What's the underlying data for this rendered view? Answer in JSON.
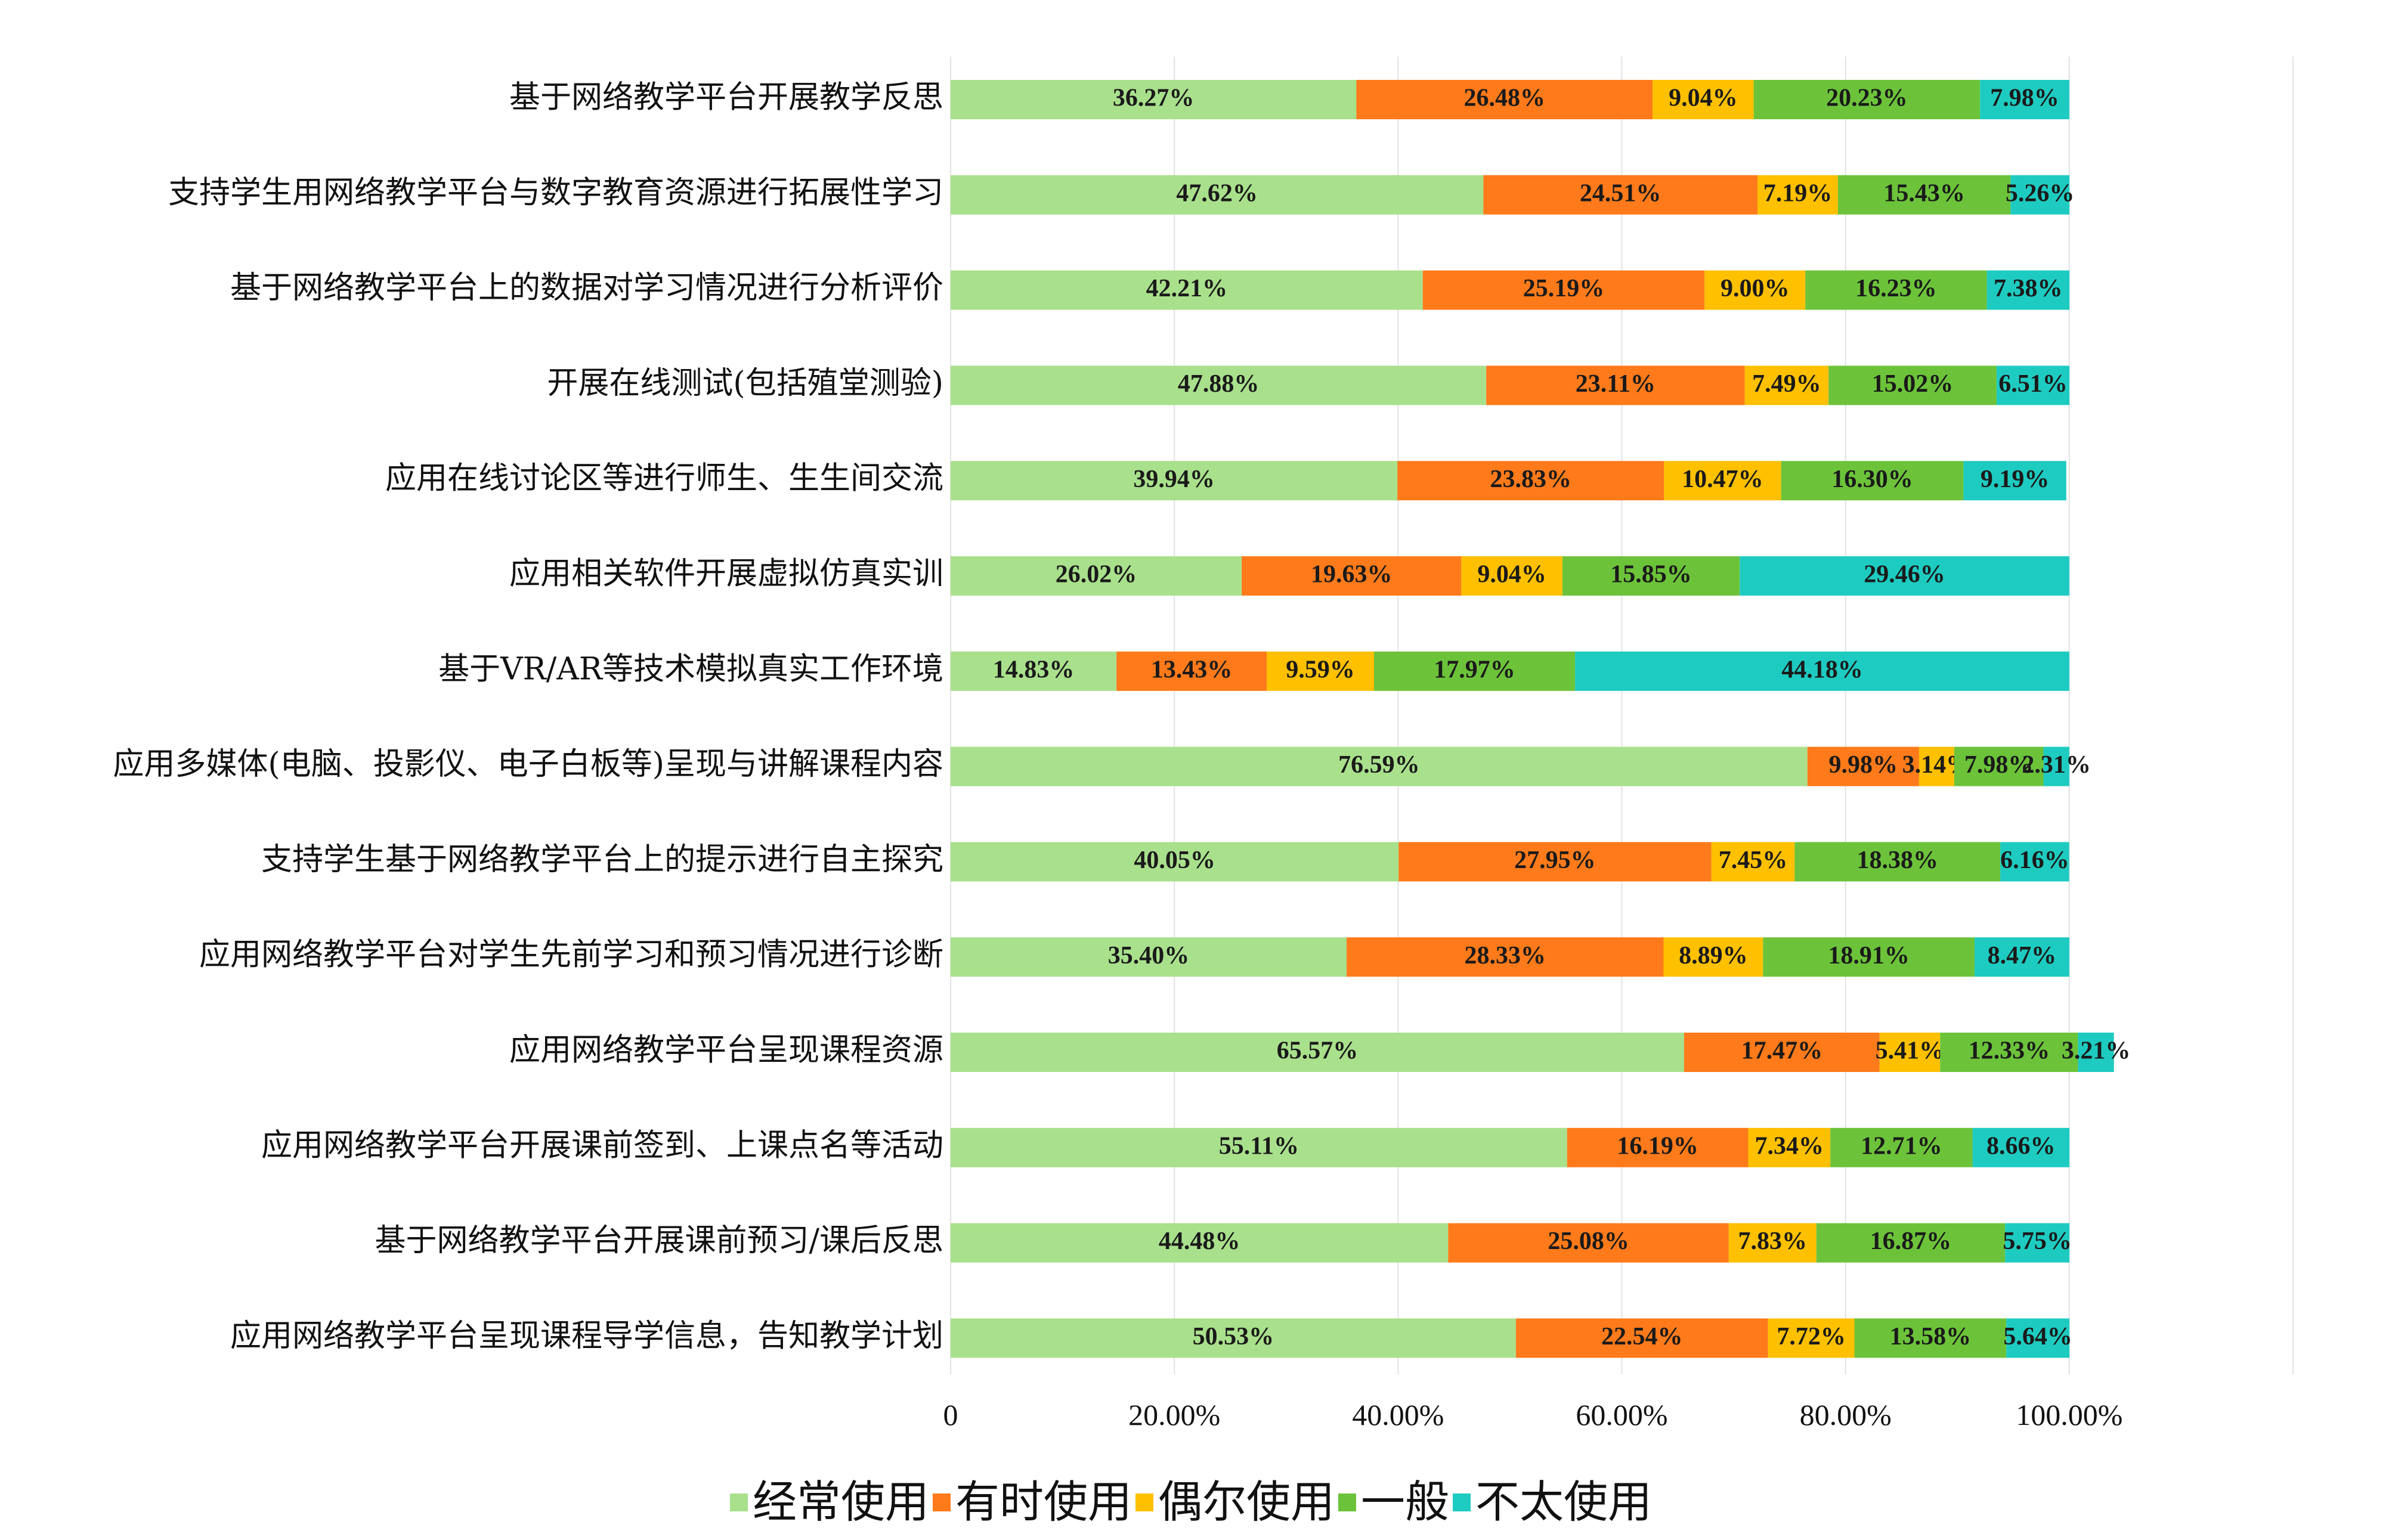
{
  "chart_data": {
    "type": "bar",
    "orientation": "horizontal",
    "stacked": true,
    "categories": [
      "基于网络教学平台开展教学反思",
      "支持学生用网络教学平台与数字教育资源进行拓展性学习",
      "基于网络教学平台上的数据对学习情况进行分析评价",
      "开展在线测试(包括殖堂测验)",
      "应用在线讨论区等进行师生、生生间交流",
      "应用相关软件开展虚拟仿真实训",
      "基于VR/AR等技术模拟真实工作环境",
      "应用多媒体(电脑、投影仪、电子白板等)呈现与讲解课程内容",
      "支持学生基于网络教学平台上的提示进行自主探究",
      "应用网络教学平台对学生先前学习和预习情况进行诊断",
      "应用网络教学平台呈现课程资源",
      "应用网络教学平台开展课前签到、上课点名等活动",
      "基于网络教学平台开展课前预习/课后反思",
      "应用网络教学平台呈现课程导学信息，告知教学计划"
    ],
    "series": [
      {
        "name": "经常使用",
        "color": "#A9E08C",
        "values": [
          36.27,
          47.62,
          42.21,
          47.88,
          39.94,
          26.02,
          14.83,
          76.59,
          40.05,
          35.4,
          65.57,
          55.11,
          44.48,
          50.53
        ],
        "labels": [
          "36.27%",
          "47.62%",
          "42.21%",
          "47.88%",
          "39.94%",
          "26.02%",
          "14.83%",
          "76.59%",
          "40.05%",
          "35.40%",
          "65.57%",
          "55.11%",
          "44.48%",
          "50.53%"
        ]
      },
      {
        "name": "有时使用",
        "color": "#FF7A1A",
        "values": [
          26.48,
          24.51,
          25.19,
          23.11,
          23.83,
          19.63,
          13.43,
          9.98,
          27.95,
          28.33,
          17.47,
          16.19,
          25.08,
          22.54
        ],
        "labels": [
          "26.48%",
          "24.51%",
          "25.19%",
          "23.11%",
          "23.83%",
          "19.63%",
          "13.43%",
          "9.98%",
          "27.95%",
          "28.33%",
          "17.47%",
          "16.19%",
          "25.08%",
          "22.54%"
        ]
      },
      {
        "name": "偶尔使用",
        "color": "#FFC000",
        "values": [
          9.04,
          7.19,
          9.0,
          7.49,
          10.47,
          9.04,
          9.59,
          3.14,
          7.45,
          8.89,
          5.41,
          7.34,
          7.83,
          7.72
        ],
        "labels": [
          "9.04%",
          "7.19%",
          "9.00%",
          "7.49%",
          "10.47%",
          "9.04%",
          "9.59%",
          "3.14%",
          "7.45%",
          "8.89%",
          "5.41%",
          "7.34%",
          "7.83%",
          "7.72%"
        ]
      },
      {
        "name": "一般",
        "color": "#6CC33A",
        "values": [
          20.23,
          15.43,
          16.23,
          15.02,
          16.3,
          15.85,
          17.97,
          7.98,
          18.38,
          18.91,
          12.33,
          12.71,
          16.87,
          13.58
        ],
        "labels": [
          "20.23%",
          "15.43%",
          "16.23%",
          "15.02%",
          "16.30%",
          "15.85%",
          "17.97%",
          "7.98%",
          "18.38%",
          "18.91%",
          "12.33%",
          "12.71%",
          "16.87%",
          "13.58%"
        ]
      },
      {
        "name": "不太使用",
        "color": "#1ECBC0",
        "values": [
          7.98,
          5.26,
          7.38,
          6.51,
          9.19,
          29.46,
          44.18,
          2.31,
          6.16,
          8.47,
          3.21,
          8.66,
          5.75,
          5.64
        ],
        "labels": [
          "7.98%",
          "5.26%",
          "7.38%",
          "6.51%",
          "9.19%",
          "29.46%",
          "44.18%",
          "2.31%",
          "6.16%",
          "8.47%",
          "3.21%",
          "8.66%",
          "5.75%",
          "5.64%"
        ]
      }
    ],
    "xlim": [
      0,
      120
    ],
    "x_ticks": [
      0,
      20,
      40,
      60,
      80,
      100
    ],
    "x_tick_labels": [
      "0",
      "20.00%",
      "40.00%",
      "60.00%",
      "80.00%",
      "100.00%"
    ],
    "grid": true,
    "legend_position": "bottom"
  }
}
